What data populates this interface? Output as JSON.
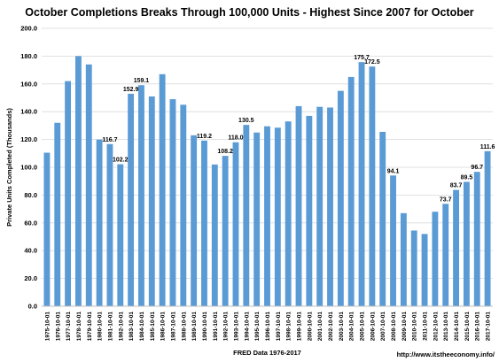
{
  "chart_data": {
    "type": "bar",
    "title": "October Completions Breaks Through 100,000 Units - Highest Since 2007 for October",
    "xlabel": "FRED Data 1976-2017",
    "ylabel": "Private Units Completed (Thousands)",
    "credit": "http://www.itstheeconomy.info/",
    "ylim": [
      0,
      200
    ],
    "yticks": [
      "0.0",
      "20.0",
      "40.0",
      "60.0",
      "80.0",
      "100.0",
      "120.0",
      "140.0",
      "160.0",
      "180.0",
      "200.0"
    ],
    "grid": true,
    "bar_color": "#5B9BD5",
    "categories": [
      "1975-10-01",
      "1976-10-01",
      "1977-10-01",
      "1978-10-01",
      "1979-10-01",
      "1980-10-01",
      "1981-10-01",
      "1982-10-01",
      "1983-10-01",
      "1984-10-01",
      "1985-10-01",
      "1986-10-01",
      "1987-10-01",
      "1988-10-01",
      "1989-10-01",
      "1990-10-01",
      "1991-10-01",
      "1992-10-01",
      "1993-10-01",
      "1994-10-01",
      "1995-10-01",
      "1996-10-01",
      "1997-10-01",
      "1998-10-01",
      "1999-10-01",
      "2000-10-01",
      "2001-10-01",
      "2002-10-01",
      "2003-10-01",
      "2004-10-01",
      "2005-10-01",
      "2006-10-01",
      "2007-10-01",
      "2008-10-01",
      "2009-10-01",
      "2010-10-01",
      "2011-10-01",
      "2012-10-01",
      "2013-10-01",
      "2014-10-01",
      "2015-10-01",
      "2016-10-01",
      "2017-10-01"
    ],
    "values": [
      110.5,
      132.0,
      162.0,
      180.0,
      174.0,
      120.0,
      116.7,
      102.2,
      152.9,
      159.1,
      151.0,
      167.0,
      149.0,
      145.0,
      123.0,
      119.2,
      102.0,
      108.2,
      118.0,
      130.5,
      125.0,
      129.5,
      128.5,
      133.0,
      144.0,
      137.0,
      143.5,
      143.0,
      155.0,
      165.0,
      175.7,
      172.5,
      125.5,
      94.1,
      67.0,
      54.5,
      52.0,
      68.0,
      73.7,
      83.7,
      89.5,
      96.7,
      111.6
    ],
    "data_labels": [
      null,
      null,
      null,
      null,
      null,
      null,
      "116.7",
      "102.2",
      "152.9",
      "159.1",
      null,
      null,
      null,
      null,
      null,
      "119.2",
      null,
      "108.2",
      "118.0",
      "130.5",
      null,
      null,
      null,
      null,
      null,
      null,
      null,
      null,
      null,
      null,
      "175.7",
      "172.5",
      null,
      "94.1",
      null,
      null,
      null,
      null,
      "73.7",
      "83.7",
      "89.5",
      "96.7",
      "111.6"
    ]
  }
}
